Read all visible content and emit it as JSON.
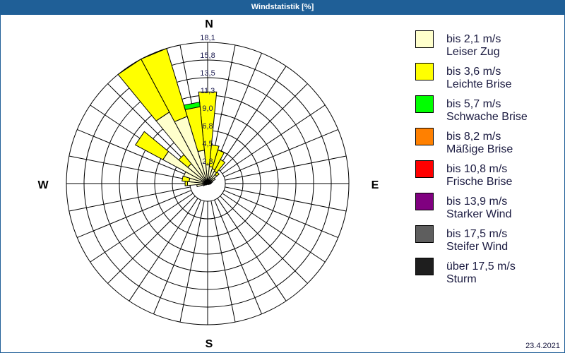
{
  "window": {
    "title": "Windstatistik [%]"
  },
  "compass": {
    "n": "N",
    "e": "E",
    "s": "S",
    "w": "W"
  },
  "legend": {
    "items": [
      {
        "range": "bis 2,1 m/s",
        "name": "Leiser Zug",
        "color": "#FFFFCC"
      },
      {
        "range": "bis 3,6 m/s",
        "name": "Leichte Brise",
        "color": "#FFFF00"
      },
      {
        "range": "bis 5,7 m/s",
        "name": "Schwache Brise",
        "color": "#00FF00"
      },
      {
        "range": "bis 8,2 m/s",
        "name": "Mäßige Brise",
        "color": "#FF8000"
      },
      {
        "range": "bis 10,8 m/s",
        "name": "Frische Brise",
        "color": "#FF0000"
      },
      {
        "range": "bis 13,9 m/s",
        "name": "Starker Wind",
        "color": "#800080"
      },
      {
        "range": "bis 17,5 m/s",
        "name": "Steifer Wind",
        "color": "#5E5E5E"
      },
      {
        "range": "über 17,5 m/s",
        "name": "Sturm",
        "color": "#1E1E1E"
      }
    ]
  },
  "footer": {
    "date": "23.4.2021"
  },
  "chart_data": {
    "type": "bar",
    "polar": true,
    "stacked": true,
    "title": "Windstatistik [%]",
    "unit": "%",
    "rmax": 18.1,
    "r_ticks": [
      2.3,
      4.5,
      6.8,
      9.0,
      11.3,
      13.5,
      15.8,
      18.1
    ],
    "r_tick_labels": [
      "2,3",
      "4,5",
      "6,8",
      "9,0",
      "11,3",
      "13,5",
      "15,8",
      "18,1"
    ],
    "direction_labels": {
      "0": "N",
      "90": "E",
      "180": "S",
      "270": "W"
    },
    "sector_width_deg": 11.25,
    "grid": true,
    "legend_position": "right",
    "categories": [
      0,
      11.25,
      22.5,
      33.75,
      45,
      56.25,
      67.5,
      78.75,
      90,
      101.25,
      112.5,
      123.75,
      135,
      146.25,
      157.5,
      168.75,
      180,
      191.25,
      202.5,
      213.75,
      225,
      236.25,
      247.5,
      258.75,
      270,
      281.25,
      292.5,
      303.75,
      315,
      326.25,
      337.5,
      348.75
    ],
    "series": [
      {
        "name": "bis 2,1 m/s (Leiser Zug)",
        "color": "#FFFFCC",
        "values": [
          2.4,
          2.2,
          2.0,
          1.8,
          1.5,
          1.1,
          0.7,
          0.5,
          0.4,
          0.3,
          0.2,
          0.2,
          0.1,
          0.1,
          0.1,
          0.1,
          0.1,
          0.1,
          0.1,
          0.1,
          0.2,
          0.3,
          0.6,
          1.4,
          2.6,
          2.4,
          3.2,
          6.5,
          3.3,
          10.4,
          9.0,
          4.3
        ]
      },
      {
        "name": "bis 3,6 m/s (Leichte Brise)",
        "color": "#FFFF00",
        "values": [
          9.4,
          2.8,
          2.5,
          1.7,
          0.4,
          0,
          0,
          0,
          0,
          0,
          0,
          0,
          0,
          0,
          0,
          0,
          0,
          0,
          0,
          0,
          0,
          0,
          0,
          0,
          0.3,
          0.9,
          0,
          4.0,
          1.5,
          7.7,
          9.1,
          5.6
        ]
      },
      {
        "name": "bis 5,7 m/s (Schwache Brise)",
        "color": "#00FF00",
        "values": [
          0,
          0,
          0,
          0,
          0,
          0,
          0,
          0,
          0,
          0,
          0,
          0,
          0,
          0,
          0,
          0,
          0,
          0,
          0,
          0,
          0,
          0,
          0,
          0,
          0,
          0,
          0,
          0,
          0,
          0,
          0,
          0.6
        ]
      },
      {
        "name": "bis 8,2 m/s (Mäßige Brise)",
        "color": "#FF8000",
        "values": [
          0,
          0,
          0,
          0,
          0,
          0,
          0,
          0,
          0,
          0,
          0,
          0,
          0,
          0,
          0,
          0,
          0,
          0,
          0,
          0,
          0,
          0,
          0,
          0,
          0,
          0,
          0,
          0,
          0,
          0,
          0,
          0
        ]
      },
      {
        "name": "bis 10,8 m/s (Frische Brise)",
        "color": "#FF0000",
        "values": [
          0,
          0,
          0,
          0,
          0,
          0,
          0,
          0,
          0,
          0,
          0,
          0,
          0,
          0,
          0,
          0,
          0,
          0,
          0,
          0,
          0,
          0,
          0,
          0,
          0,
          0,
          0,
          0,
          0,
          0,
          0,
          0
        ]
      },
      {
        "name": "bis 13,9 m/s (Starker Wind)",
        "color": "#800080",
        "values": [
          0,
          0,
          0,
          0,
          0,
          0,
          0,
          0,
          0,
          0,
          0,
          0,
          0,
          0,
          0,
          0,
          0,
          0,
          0,
          0,
          0,
          0,
          0,
          0,
          0,
          0,
          0,
          0,
          0,
          0,
          0,
          0
        ]
      },
      {
        "name": "bis 17,5 m/s (Steifer Wind)",
        "color": "#5E5E5E",
        "values": [
          0,
          0,
          0,
          0,
          0,
          0,
          0,
          0,
          0,
          0,
          0,
          0,
          0,
          0,
          0,
          0,
          0,
          0,
          0,
          0,
          0,
          0,
          0,
          0,
          0,
          0,
          0,
          0,
          0,
          0,
          0,
          0
        ]
      },
      {
        "name": "über 17,5 m/s (Sturm)",
        "color": "#1E1E1E",
        "values": [
          0,
          0,
          0,
          0,
          0,
          0,
          0,
          0,
          0,
          0,
          0,
          0,
          0,
          0,
          0,
          0,
          0,
          0,
          0,
          0,
          0,
          0,
          0,
          0,
          0,
          0,
          0,
          0,
          0,
          0,
          0,
          0
        ]
      }
    ]
  }
}
